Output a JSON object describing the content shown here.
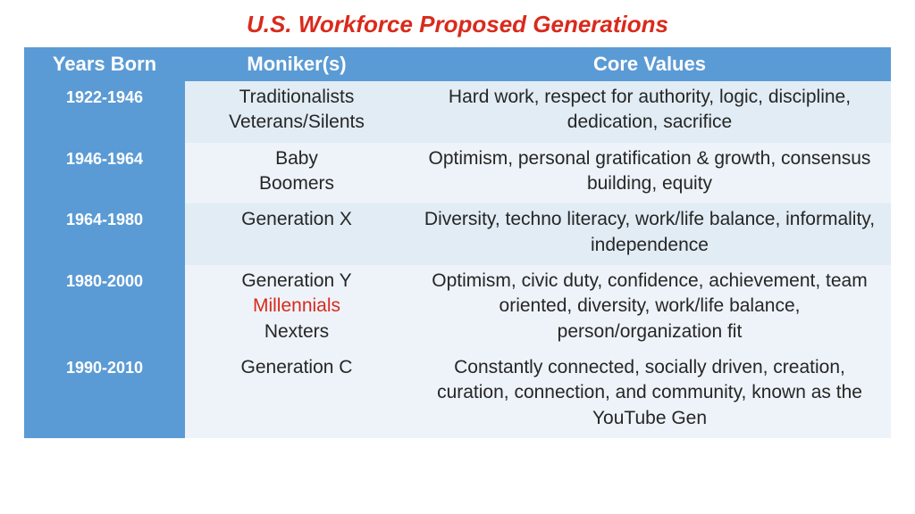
{
  "title": "U.S. Workforce Proposed Generations",
  "title_color": "#d92a1c",
  "title_fontsize": 26,
  "header_bg": "#5b9bd5",
  "header_color": "#ffffff",
  "header_fontsize": 22,
  "years_col_bg": "#5b9bd5",
  "years_col_color": "#ffffff",
  "years_fontsize": 18,
  "body_text_color": "#262626",
  "body_fontsize": 21,
  "row_bg_a": "#e1ecf4",
  "row_bg_b": "#edf3f9",
  "highlight_color": "#d92a1c",
  "columns": [
    "Years Born",
    "Moniker(s)",
    "Core Values"
  ],
  "rows": [
    {
      "years": "1922-1946",
      "monikers": [
        {
          "text": "Traditionalists",
          "highlight": false
        },
        {
          "text": "Veterans/Silents",
          "highlight": false
        }
      ],
      "core_values": "Hard work, respect for authority, logic, discipline, dedication, sacrifice",
      "bg_key": "a"
    },
    {
      "years": "1946-1964",
      "monikers": [
        {
          "text": "Baby",
          "highlight": false
        },
        {
          "text": "Boomers",
          "highlight": false
        }
      ],
      "core_values": "Optimism, personal gratification & growth, consensus building, equity",
      "bg_key": "b"
    },
    {
      "years": "1964-1980",
      "monikers": [
        {
          "text": "Generation X",
          "highlight": false
        }
      ],
      "core_values": "Diversity, techno literacy, work/life balance, informality, independence",
      "bg_key": "a"
    },
    {
      "years": "1980-2000",
      "monikers": [
        {
          "text": "Generation Y",
          "highlight": false
        },
        {
          "text": "Millennials",
          "highlight": true
        },
        {
          "text": "Nexters",
          "highlight": false
        }
      ],
      "core_values": "Optimism, civic duty, confidence, achievement, team oriented, diversity, work/life balance, person/organization fit",
      "bg_key": "b"
    },
    {
      "years": "1990-2010",
      "monikers": [
        {
          "text": "Generation C",
          "highlight": false
        }
      ],
      "core_values": "Constantly connected, socially driven, creation, curation, connection, and community, known as the YouTube Gen",
      "bg_key": "b"
    }
  ]
}
